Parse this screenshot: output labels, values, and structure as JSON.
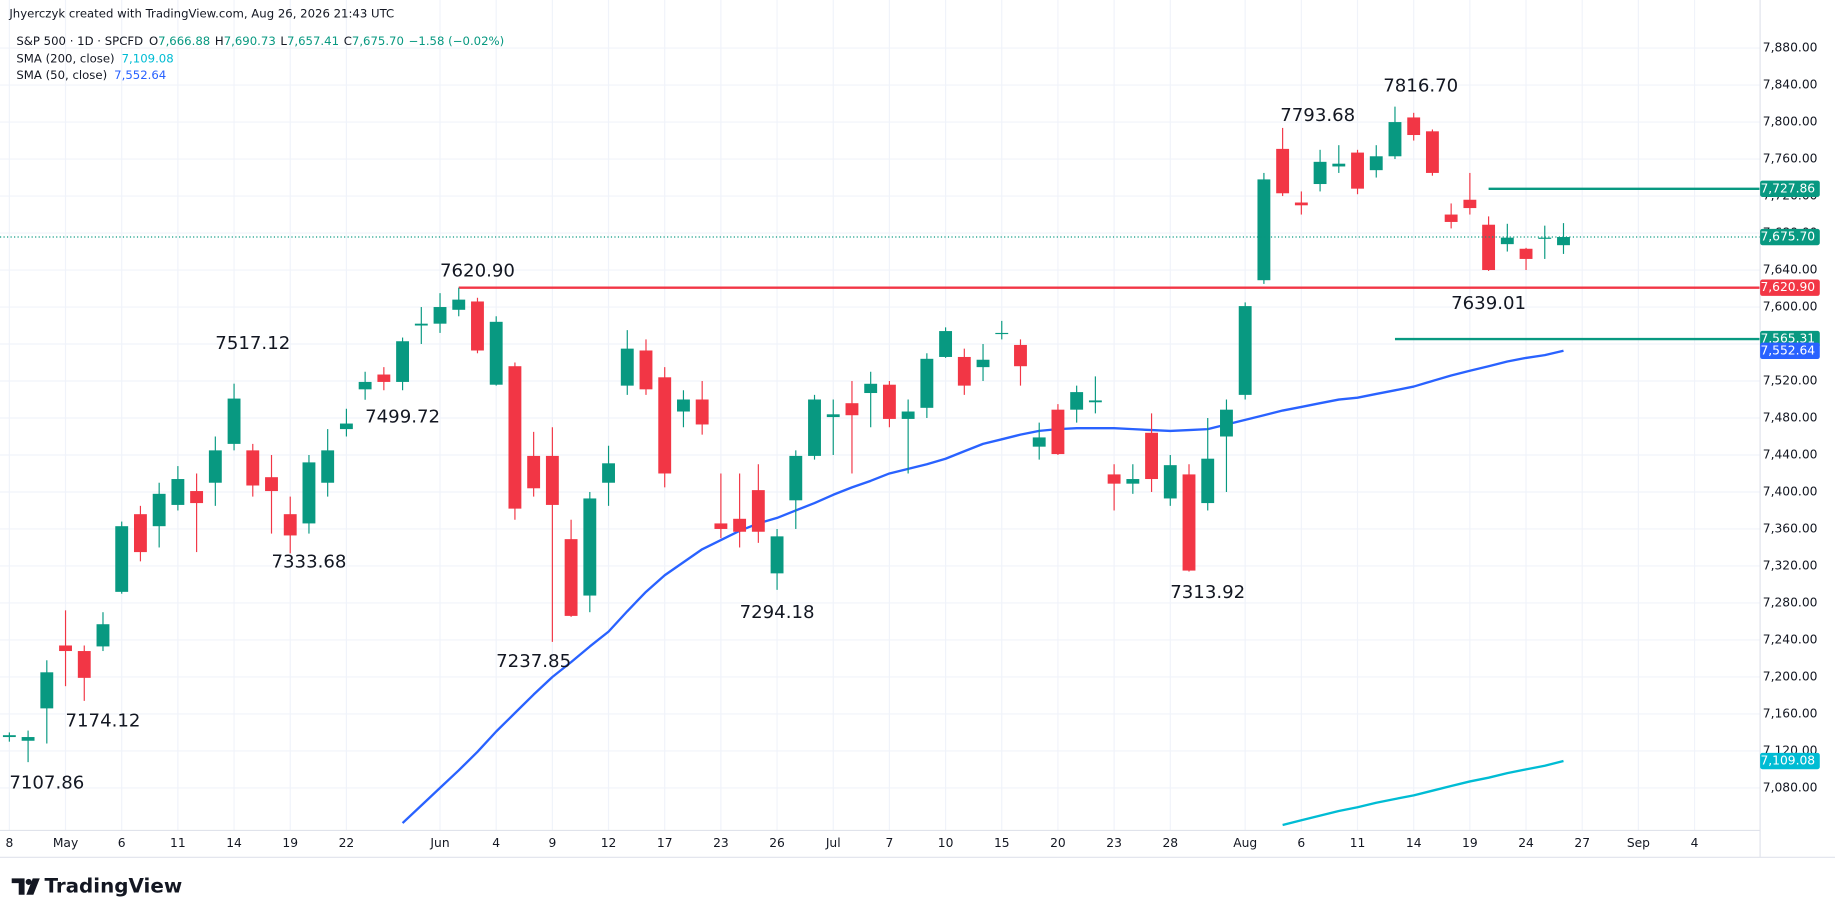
{
  "chart_data": {
    "type": "candlestick",
    "credit": "Jhyerczyk created with TradingView.com, Aug 26, 2026 21:43 UTC",
    "brand": "TradingView",
    "up_color": "#089981",
    "down_color": "#f23645",
    "categories": [
      "8",
      null,
      null,
      "May",
      null,
      null,
      "6",
      null,
      null,
      "11",
      null,
      null,
      "14",
      null,
      null,
      "19",
      null,
      null,
      "22",
      null,
      null,
      null,
      null,
      "Jun",
      null,
      null,
      "4",
      null,
      null,
      "9",
      null,
      null,
      "12",
      null,
      null,
      "17",
      null,
      null,
      "23",
      null,
      null,
      "26",
      null,
      null,
      "Jul",
      null,
      null,
      "7",
      null,
      null,
      "10",
      null,
      null,
      "15",
      null,
      null,
      "20",
      null,
      null,
      "23",
      null,
      null,
      "28",
      null,
      null,
      null,
      "Aug",
      null,
      null,
      "6",
      null,
      null,
      "11",
      null,
      null,
      "14",
      null,
      null,
      "19",
      null,
      null,
      "24",
      null,
      null,
      "27",
      null,
      null,
      "Sep",
      null,
      null,
      "4",
      null,
      null,
      null
    ],
    "series": [
      {
        "name": "S&P 500 · 1D · SPCFD",
        "legend": [
          {
            "key": "O",
            "value": "7,666.88"
          },
          {
            "key": "H",
            "value": "7,690.73"
          },
          {
            "key": "L",
            "value": "7,657.41"
          },
          {
            "key": "C",
            "value": "7,675.70"
          }
        ],
        "change": "−1.58 (−0.02%)",
        "open": [
          7135,
          7131,
          7166,
          7234,
          7228,
          7233,
          7292,
          7376,
          7363,
          7386,
          7401,
          7410,
          7452,
          7445,
          7416,
          7376,
          7366,
          7410,
          7468,
          7511,
          7527,
          7519,
          7580,
          7582,
          7597,
          7606,
          7516,
          7536,
          7439,
          7439,
          7349,
          7288,
          7410,
          7515,
          7553,
          7524,
          7487,
          7500,
          7366,
          7371,
          7402,
          7312,
          7391,
          7439,
          7481,
          7496,
          7507,
          7516,
          7479,
          7491,
          7546,
          7546,
          7535,
          7571,
          7559,
          7449,
          7489,
          7489,
          7497,
          7419,
          7409,
          7464,
          7393,
          7419,
          7388,
          7460,
          7505,
          7629,
          7771,
          7713,
          7733,
          7752,
          7767,
          7748,
          7763,
          7805,
          7790,
          7700,
          7716,
          7689,
          7668,
          7663,
          7674,
          7666.88,
          null,
          null,
          null,
          null,
          null,
          null,
          null,
          null,
          null,
          null
        ],
        "high": [
          7140,
          7142,
          7218,
          7272,
          7234,
          7270,
          7368,
          7385,
          7410,
          7428,
          7420,
          7460,
          7517.12,
          7452,
          7440,
          7395,
          7440,
          7468,
          7490,
          7530,
          7535,
          7567,
          7600,
          7615,
          7620.9,
          7610,
          7590,
          7540,
          7465,
          7470,
          7370,
          7400,
          7450,
          7575,
          7565,
          7535,
          7510,
          7520,
          7420,
          7420,
          7430,
          7360,
          7445,
          7505,
          7500,
          7520,
          7530,
          7520,
          7500,
          7550,
          7578,
          7555,
          7560,
          7585,
          7565,
          7475,
          7495,
          7515,
          7525,
          7430,
          7430,
          7485,
          7440,
          7430,
          7480,
          7500,
          7605,
          7745,
          7793.68,
          7725,
          7770,
          7775,
          7770,
          7775,
          7816.7,
          7810,
          7792,
          7712,
          7745,
          7698,
          7690,
          7664,
          7688,
          7690.73,
          null,
          null,
          null,
          null,
          null,
          null,
          null,
          null,
          null,
          null
        ],
        "low": [
          7130,
          7107.86,
          7128,
          7190,
          7174.12,
          7228,
          7290,
          7325,
          7340,
          7380,
          7335,
          7385,
          7445,
          7395,
          7355,
          7333.68,
          7355,
          7395,
          7460,
          7499.72,
          7510,
          7510,
          7560,
          7572,
          7590,
          7550,
          7515,
          7370,
          7395,
          7237.85,
          7265,
          7270,
          7385,
          7505,
          7505,
          7405,
          7470,
          7462,
          7350,
          7340,
          7345,
          7294.18,
          7360,
          7435,
          7440,
          7420,
          7470,
          7470,
          7420,
          7480,
          7545,
          7505,
          7520,
          7565,
          7515,
          7435,
          7440,
          7475,
          7485,
          7380,
          7398,
          7400,
          7385,
          7313.92,
          7380,
          7400,
          7500,
          7625,
          7720,
          7700,
          7725,
          7745,
          7722,
          7740,
          7760,
          7780,
          7742,
          7685,
          7700,
          7639.01,
          7660,
          7640,
          7652,
          7657.41,
          null,
          null,
          null,
          null,
          null,
          null,
          null,
          null,
          null,
          null
        ],
        "close": [
          7137,
          7135,
          7205,
          7228,
          7199,
          7257,
          7363,
          7335,
          7398,
          7414,
          7388,
          7445,
          7501,
          7407,
          7401,
          7353,
          7432,
          7445,
          7474,
          7519,
          7519,
          7563,
          7582,
          7600,
          7608,
          7553,
          7584,
          7382,
          7404,
          7386,
          7266,
          7393,
          7431,
          7555,
          7511,
          7420,
          7500,
          7473,
          7360,
          7357,
          7357,
          7352,
          7439,
          7500,
          7484,
          7483,
          7517,
          7479,
          7487,
          7544,
          7574,
          7515,
          7543,
          7572,
          7536,
          7459,
          7441,
          7508,
          7499,
          7409,
          7414,
          7414,
          7429,
          7315,
          7436,
          7489,
          7601,
          7738,
          7723,
          7710,
          7757,
          7755,
          7728,
          7763,
          7800,
          7786,
          7745,
          7692,
          7707,
          7640,
          7675,
          7652,
          7675,
          7675.7,
          null,
          null,
          null,
          null,
          null,
          null,
          null,
          null,
          null,
          null
        ]
      }
    ],
    "indicators": [
      {
        "name": "SMA (200, close)",
        "color": "#00bcd4",
        "label": "7,109.08",
        "values": [
          null,
          null,
          null,
          null,
          null,
          null,
          null,
          null,
          null,
          null,
          null,
          null,
          null,
          null,
          null,
          null,
          null,
          null,
          null,
          null,
          null,
          null,
          null,
          null,
          null,
          null,
          null,
          null,
          null,
          null,
          null,
          null,
          null,
          null,
          null,
          null,
          null,
          null,
          null,
          null,
          null,
          null,
          null,
          null,
          null,
          null,
          null,
          null,
          null,
          null,
          null,
          null,
          null,
          null,
          null,
          null,
          null,
          null,
          null,
          null,
          null,
          null,
          null,
          null,
          null,
          null,
          null,
          null,
          7040,
          7045,
          7050,
          7055,
          7059,
          7064,
          7068,
          7072,
          7077,
          7082,
          7087,
          7091,
          7096,
          7100,
          7104,
          7109.08,
          null,
          null,
          null,
          null,
          null,
          null,
          null,
          null,
          null,
          null
        ]
      },
      {
        "name": "SMA (50, close)",
        "color": "#2962ff",
        "label": "7,552.64",
        "values": [
          null,
          null,
          null,
          null,
          null,
          null,
          null,
          null,
          null,
          null,
          null,
          null,
          null,
          null,
          null,
          null,
          null,
          null,
          null,
          null,
          null,
          7042,
          7061,
          7080,
          7099,
          7119,
          7141,
          7161,
          7181,
          7200,
          7216,
          7233,
          7249,
          7271,
          7292,
          7310,
          7324,
          7338,
          7348,
          7358,
          7366,
          7372,
          7380,
          7388,
          7397,
          7405,
          7412,
          7420,
          7425,
          7430,
          7436,
          7444,
          7452,
          7457,
          7462,
          7466,
          7468,
          7469,
          7469,
          7469,
          7468,
          7467,
          7466,
          7467,
          7468,
          7473,
          7478,
          7483,
          7488,
          7492,
          7496,
          7500,
          7502,
          7506,
          7510,
          7514,
          7520,
          7526,
          7531,
          7536,
          7541,
          7545,
          7548,
          7552.64,
          null,
          null,
          null,
          null,
          null,
          null,
          null,
          null,
          null,
          null
        ]
      }
    ],
    "levels": [
      {
        "value": 7727.86,
        "label": "7,727.86",
        "color": "#089981",
        "from": 79
      },
      {
        "value": 7620.9,
        "label": "7,620.90",
        "color": "#f23645",
        "from": 24
      },
      {
        "value": 7565.31,
        "label": "7,565.31",
        "color": "#089981",
        "from": 74
      }
    ],
    "annotations": [
      "7107.86",
      "7174.12",
      "7517.12",
      "7333.68",
      "7499.72",
      "7620.90",
      "7237.85",
      "7294.18",
      "7313.92",
      "7793.68",
      "7816.70",
      "7639.01"
    ],
    "ylim": [
      7034,
      7932
    ],
    "yticks": [
      {
        "value": 7080,
        "label": "7,080.00"
      },
      {
        "value": 7120,
        "label": "7,120.00"
      },
      {
        "value": 7160,
        "label": "7,160.00"
      },
      {
        "value": 7200,
        "label": "7,200.00"
      },
      {
        "value": 7240,
        "label": "7,240.00"
      },
      {
        "value": 7280,
        "label": "7,280.00"
      },
      {
        "value": 7320,
        "label": "7,320.00"
      },
      {
        "value": 7360,
        "label": "7,360.00"
      },
      {
        "value": 7400,
        "label": "7,400.00"
      },
      {
        "value": 7440,
        "label": "7,440.00"
      },
      {
        "value": 7480,
        "label": "7,480.00"
      },
      {
        "value": 7520,
        "label": "7,520.00"
      },
      {
        "value": 7560,
        "label": "7,560.00"
      },
      {
        "value": 7600,
        "label": "7,600.00"
      },
      {
        "value": 7640,
        "label": "7,640.00"
      },
      {
        "value": 7680,
        "label": "7,680.00"
      },
      {
        "value": 7720,
        "label": "7,720.00"
      },
      {
        "value": 7760,
        "label": "7,760.00"
      },
      {
        "value": 7800,
        "label": "7,800.00"
      },
      {
        "value": 7840,
        "label": "7,840.00"
      },
      {
        "value": 7880,
        "label": "7,880.00"
      }
    ],
    "grid": true
  }
}
